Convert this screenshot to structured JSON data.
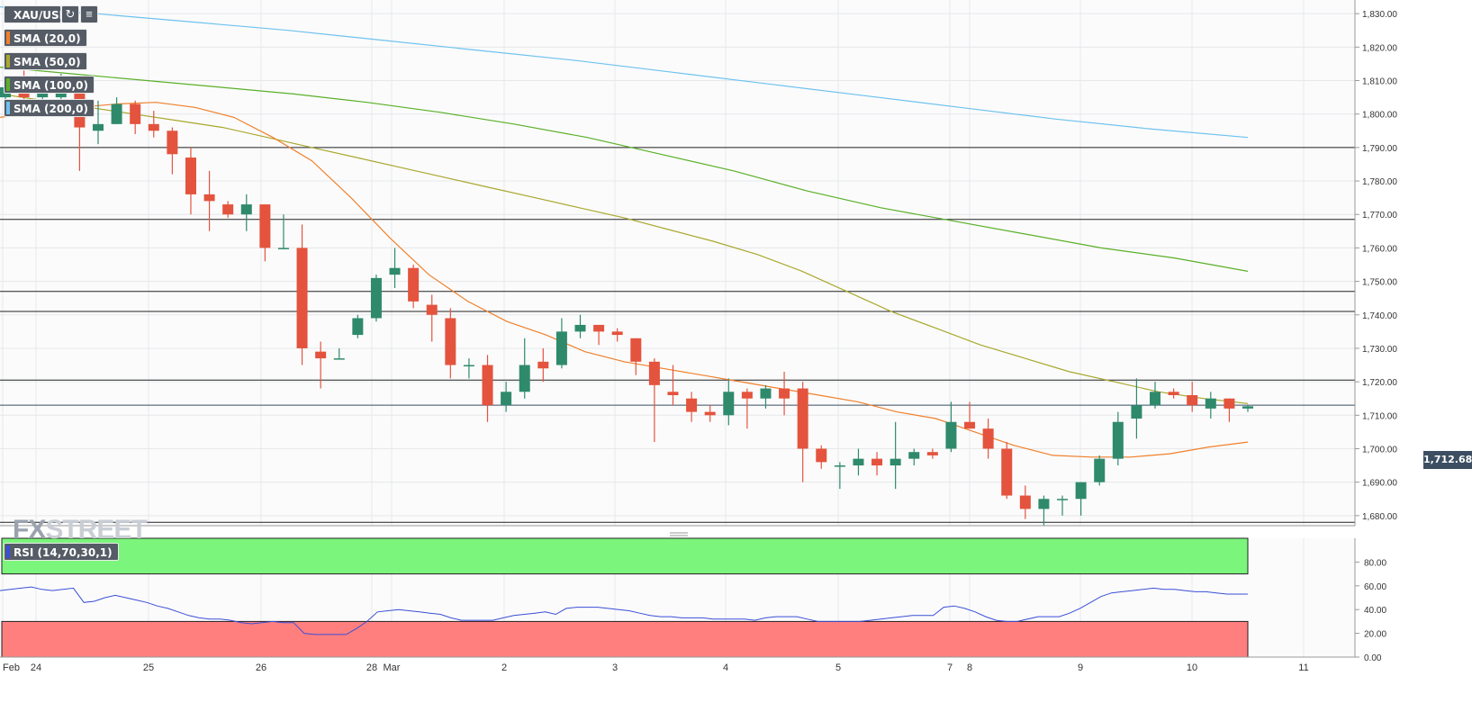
{
  "toolbar": {
    "symbol": "XAU/USD",
    "refresh_icon": "refresh-icon",
    "settings_icon": "chart-settings-icon"
  },
  "indicators": [
    {
      "label": "SMA (20,0)",
      "color": "#f0802a"
    },
    {
      "label": "SMA (50,0)",
      "color": "#a9a82d"
    },
    {
      "label": "SMA (100,0)",
      "color": "#5ab027"
    },
    {
      "label": "SMA (200,0)",
      "color": "#6ec2ee"
    }
  ],
  "rsi": {
    "label": "RSI (14,70,30,1)"
  },
  "logo": {
    "fx": "FX",
    "street": "STREET"
  },
  "current_price": "1,712.68",
  "colors": {
    "up": "#2f8a6c",
    "down": "#e4533d",
    "rsi_line": "#3a4fd6",
    "overbought": "#7bf57b",
    "oversold": "#ff7f7f"
  },
  "chart_data": [
    {
      "type": "candlestick",
      "period": "4h",
      "x_ticks": [
        "Feb",
        "24",
        "25",
        "26",
        "28",
        "Mar",
        "2",
        "3",
        "4",
        "5",
        "7",
        "8",
        "9",
        "10",
        "11"
      ],
      "y_ticks": [
        "1,680.00",
        "1,690.00",
        "1,700.00",
        "1,710.00",
        "1,720.00",
        "1,730.00",
        "1,740.00",
        "1,750.00",
        "1,760.00",
        "1,770.00",
        "1,780.00",
        "1,790.00",
        "1,800.00",
        "1,810.00",
        "1,820.00",
        "1,830.00"
      ],
      "ylim": [
        1677,
        1833
      ],
      "grid": true,
      "horizontal_levels": [
        1790,
        1768.5,
        1747,
        1741,
        1720.5,
        1713,
        1678
      ],
      "candles": [
        {
          "o": 1805,
          "h": 1808,
          "l": 1803,
          "c": 1808
        },
        {
          "o": 1808,
          "h": 1813,
          "l": 1804,
          "c": 1805
        },
        {
          "o": 1805,
          "h": 1810,
          "l": 1802,
          "c": 1808
        },
        {
          "o": 1805,
          "h": 1812,
          "l": 1803,
          "c": 1808
        },
        {
          "o": 1809,
          "h": 1810,
          "l": 1783,
          "c": 1796
        },
        {
          "o": 1795,
          "h": 1804,
          "l": 1791,
          "c": 1797
        },
        {
          "o": 1797,
          "h": 1805,
          "l": 1797,
          "c": 1803
        },
        {
          "o": 1803,
          "h": 1804,
          "l": 1794,
          "c": 1797
        },
        {
          "o": 1797,
          "h": 1801,
          "l": 1793,
          "c": 1795
        },
        {
          "o": 1795,
          "h": 1796,
          "l": 1782,
          "c": 1788
        },
        {
          "o": 1787,
          "h": 1790,
          "l": 1770,
          "c": 1776
        },
        {
          "o": 1776,
          "h": 1783,
          "l": 1765,
          "c": 1774
        },
        {
          "o": 1773,
          "h": 1774,
          "l": 1769,
          "c": 1770
        },
        {
          "o": 1770,
          "h": 1776,
          "l": 1765,
          "c": 1773
        },
        {
          "o": 1773,
          "h": 1773,
          "l": 1756,
          "c": 1760
        },
        {
          "o": 1760,
          "h": 1770,
          "l": 1760,
          "c": 1760
        },
        {
          "o": 1760,
          "h": 1767,
          "l": 1725,
          "c": 1730
        },
        {
          "o": 1729,
          "h": 1732,
          "l": 1718,
          "c": 1727
        },
        {
          "o": 1727,
          "h": 1730,
          "l": 1727,
          "c": 1727
        },
        {
          "o": 1734,
          "h": 1740,
          "l": 1733,
          "c": 1739
        },
        {
          "o": 1739,
          "h": 1752,
          "l": 1738,
          "c": 1751
        },
        {
          "o": 1752,
          "h": 1760,
          "l": 1748,
          "c": 1754
        },
        {
          "o": 1754,
          "h": 1755,
          "l": 1742,
          "c": 1744
        },
        {
          "o": 1743,
          "h": 1746,
          "l": 1732,
          "c": 1740
        },
        {
          "o": 1739,
          "h": 1742,
          "l": 1721,
          "c": 1725
        },
        {
          "o": 1725,
          "h": 1727,
          "l": 1721,
          "c": 1725
        },
        {
          "o": 1725,
          "h": 1728,
          "l": 1708,
          "c": 1713
        },
        {
          "o": 1713,
          "h": 1720,
          "l": 1711,
          "c": 1717
        },
        {
          "o": 1717,
          "h": 1733,
          "l": 1715,
          "c": 1725
        },
        {
          "o": 1726,
          "h": 1730,
          "l": 1720,
          "c": 1724
        },
        {
          "o": 1725,
          "h": 1739,
          "l": 1724,
          "c": 1735
        },
        {
          "o": 1735,
          "h": 1740,
          "l": 1733,
          "c": 1737
        },
        {
          "o": 1737,
          "h": 1737,
          "l": 1731,
          "c": 1735
        },
        {
          "o": 1735,
          "h": 1736,
          "l": 1732,
          "c": 1734
        },
        {
          "o": 1733,
          "h": 1733,
          "l": 1722,
          "c": 1726
        },
        {
          "o": 1726,
          "h": 1727,
          "l": 1702,
          "c": 1719
        },
        {
          "o": 1717,
          "h": 1725,
          "l": 1713,
          "c": 1716
        },
        {
          "o": 1715,
          "h": 1717,
          "l": 1708,
          "c": 1711
        },
        {
          "o": 1711,
          "h": 1713,
          "l": 1708,
          "c": 1710
        },
        {
          "o": 1710,
          "h": 1721,
          "l": 1707,
          "c": 1717
        },
        {
          "o": 1717,
          "h": 1718,
          "l": 1706,
          "c": 1715
        },
        {
          "o": 1715,
          "h": 1719,
          "l": 1712,
          "c": 1718
        },
        {
          "o": 1718,
          "h": 1723,
          "l": 1710,
          "c": 1715
        },
        {
          "o": 1718,
          "h": 1720,
          "l": 1690,
          "c": 1700
        },
        {
          "o": 1700,
          "h": 1701,
          "l": 1694,
          "c": 1696
        },
        {
          "o": 1695,
          "h": 1696,
          "l": 1688,
          "c": 1695
        },
        {
          "o": 1695,
          "h": 1700,
          "l": 1692,
          "c": 1697
        },
        {
          "o": 1697,
          "h": 1699,
          "l": 1692,
          "c": 1695
        },
        {
          "o": 1695,
          "h": 1708,
          "l": 1688,
          "c": 1697
        },
        {
          "o": 1697,
          "h": 1700,
          "l": 1695,
          "c": 1699
        },
        {
          "o": 1699,
          "h": 1700,
          "l": 1697,
          "c": 1698
        },
        {
          "o": 1700,
          "h": 1714,
          "l": 1699,
          "c": 1708
        },
        {
          "o": 1708,
          "h": 1714,
          "l": 1706,
          "c": 1706
        },
        {
          "o": 1706,
          "h": 1709,
          "l": 1697,
          "c": 1700
        },
        {
          "o": 1700,
          "h": 1702,
          "l": 1685,
          "c": 1686
        },
        {
          "o": 1686,
          "h": 1689,
          "l": 1679,
          "c": 1682
        },
        {
          "o": 1682,
          "h": 1686,
          "l": 1677,
          "c": 1685
        },
        {
          "o": 1685,
          "h": 1686,
          "l": 1680,
          "c": 1685
        },
        {
          "o": 1685,
          "h": 1690,
          "l": 1680,
          "c": 1690
        },
        {
          "o": 1690,
          "h": 1698,
          "l": 1689,
          "c": 1697
        },
        {
          "o": 1697,
          "h": 1711,
          "l": 1695,
          "c": 1708
        },
        {
          "o": 1709,
          "h": 1721,
          "l": 1703,
          "c": 1713
        },
        {
          "o": 1713,
          "h": 1720,
          "l": 1712,
          "c": 1717
        },
        {
          "o": 1717,
          "h": 1718,
          "l": 1715,
          "c": 1716
        },
        {
          "o": 1716,
          "h": 1720,
          "l": 1711,
          "c": 1713
        },
        {
          "o": 1712,
          "h": 1717,
          "l": 1709,
          "c": 1715
        },
        {
          "o": 1715,
          "h": 1715,
          "l": 1708,
          "c": 1712
        },
        {
          "o": 1712,
          "h": 1713,
          "l": 1711,
          "c": 1712.68
        }
      ],
      "sma20": [
        1799,
        1800.5,
        1802,
        1803,
        1803.5,
        1802,
        1799,
        1793,
        1786,
        1775,
        1763,
        1752,
        1744,
        1738,
        1734,
        1729,
        1726,
        1724,
        1722,
        1720,
        1718,
        1716,
        1714,
        1711,
        1709,
        1705,
        1701,
        1698,
        1697.5,
        1697.5,
        1698.5,
        1700.5,
        1702
      ],
      "sma50": [
        1806,
        1804,
        1802,
        1800,
        1798,
        1796,
        1793,
        1790,
        1787,
        1784,
        1781,
        1778,
        1775,
        1772,
        1769,
        1765.5,
        1762,
        1758,
        1753,
        1747,
        1741,
        1736,
        1731,
        1727,
        1723,
        1720,
        1717,
        1715,
        1713.5
      ],
      "sma100": [
        1814,
        1812,
        1810,
        1808,
        1806,
        1803.5,
        1800.5,
        1797,
        1793,
        1788,
        1783,
        1777,
        1772,
        1768,
        1764,
        1760,
        1757,
        1753
      ],
      "sma200": [
        1832,
        1830,
        1827.5,
        1825,
        1822,
        1819,
        1816,
        1812.5,
        1809,
        1805.5,
        1802,
        1798.5,
        1795.5,
        1793
      ],
      "rsi_values": [
        56,
        57,
        58,
        59,
        57,
        56,
        57,
        58,
        46,
        47,
        50,
        52,
        50,
        48,
        46,
        43,
        41,
        38,
        35,
        33,
        32,
        32,
        31,
        29,
        28,
        29,
        30,
        29,
        29,
        20,
        19,
        19,
        19,
        19,
        24,
        30,
        38,
        39,
        40,
        39,
        38,
        37,
        36,
        33,
        31,
        31,
        31,
        31,
        33,
        35,
        36,
        37,
        38,
        36,
        41,
        42,
        42,
        42,
        41,
        40,
        39,
        37,
        35,
        34,
        34,
        33,
        33,
        33,
        32,
        32,
        32,
        32,
        31,
        33,
        34,
        34,
        34,
        32,
        30,
        30,
        30,
        30,
        30,
        31,
        32,
        33,
        34,
        35,
        35,
        35,
        42,
        43,
        41,
        38,
        34,
        31,
        30,
        30,
        32,
        34,
        34,
        34,
        37,
        41,
        46,
        51,
        54,
        55,
        56,
        57,
        58,
        57,
        57,
        56,
        55,
        55,
        54,
        53,
        53,
        53
      ],
      "rsi_ylim": [
        0,
        100
      ],
      "rsi_ticks": [
        "80.00",
        "60.00",
        "40.00",
        "20.00",
        "0.00"
      ],
      "rsi_bands": {
        "overbought": 70,
        "oversold": 30
      }
    }
  ]
}
